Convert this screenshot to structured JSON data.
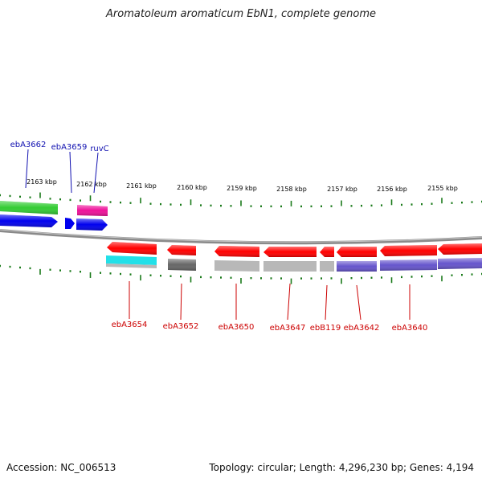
{
  "title": "Aromatoleum aromaticum EbN1, complete genome",
  "footer": {
    "accession": "Accession: NC_006513",
    "summary": "Topology: circular; Length: 4,296,230 bp; Genes: 4,194"
  },
  "colors": {
    "forward_label": "#1010b0",
    "reverse_label": "#cc0000",
    "tick": "#1a7a1a",
    "backbone": "#909090",
    "red": "#ff0000",
    "blue": "#0000ee",
    "green": "#33cc33",
    "magenta": "#ee1199",
    "cyan": "#22e0e8",
    "gray": "#b8b8b8",
    "darkgray": "#666666",
    "purple": "#6655cc"
  },
  "scale_labels": [
    "2163 kbp",
    "2162 kbp",
    "2161 kbp",
    "2160 kbp",
    "2159 kbp",
    "2158 kbp",
    "2157 kbp",
    "2156 kbp",
    "2155 kbp"
  ],
  "forward_gene_labels": [
    "ebA3662",
    "ebA3659",
    "ruvC"
  ],
  "reverse_gene_labels": [
    "ebA3654",
    "ebA3652",
    "ebA3650",
    "ebA3647",
    "ebB119",
    "ebA3642",
    "ebA3640"
  ]
}
